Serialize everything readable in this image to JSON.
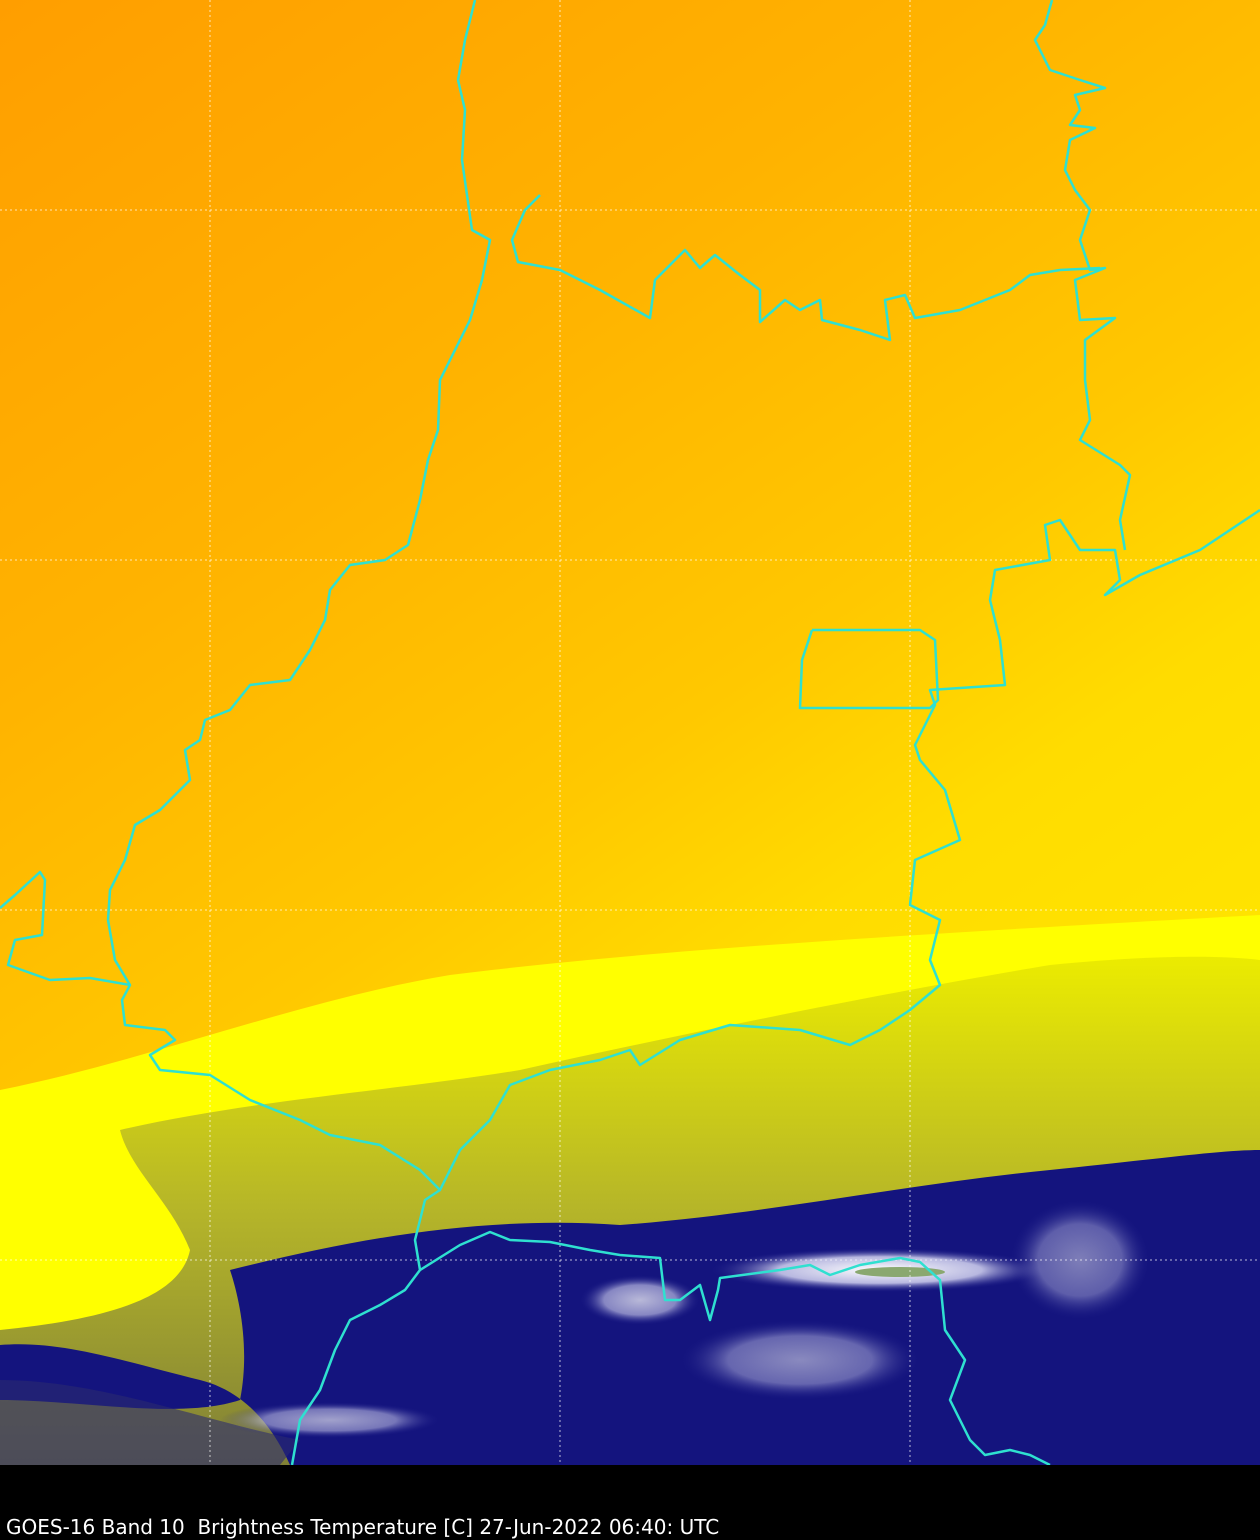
{
  "caption": "GOES-16 Band 10  Brightness Temperature [C] 27-Jun-2022 06:40: UTC"
}
